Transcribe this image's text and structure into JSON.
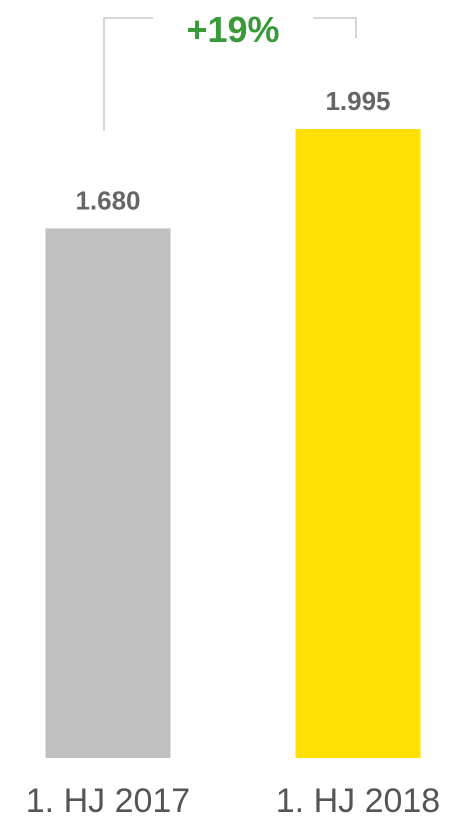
{
  "chart_data": {
    "type": "bar",
    "categories": [
      "1. HJ 2017",
      "1. HJ 2018"
    ],
    "values": [
      1680,
      1995
    ],
    "value_labels": [
      "1.680",
      "1.995"
    ],
    "ylim": [
      0,
      2230
    ],
    "grid": false,
    "bar_colors": [
      "#c0c0c0",
      "#ffe000"
    ],
    "annotation": {
      "text": "+19%",
      "color": "#3a9a3a",
      "connector_color": "#c8c8c8"
    }
  }
}
